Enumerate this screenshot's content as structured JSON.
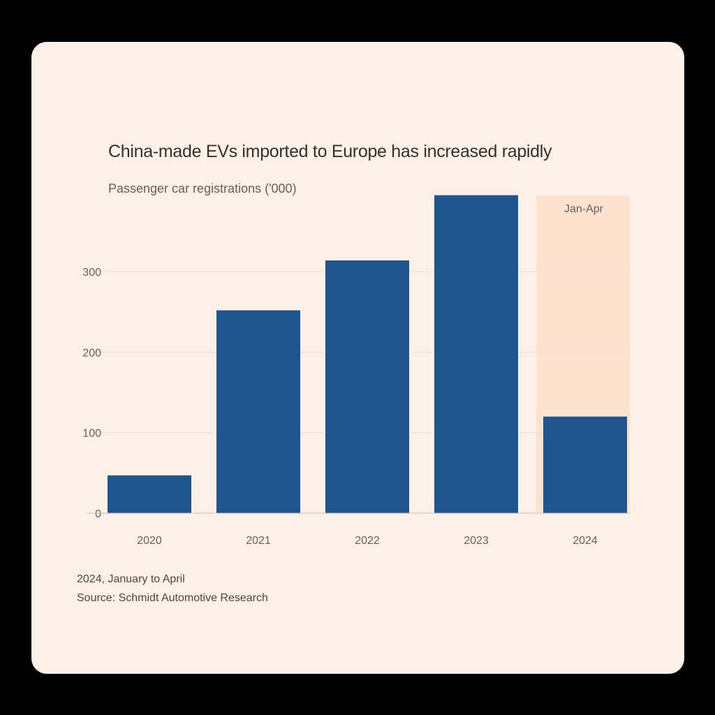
{
  "chart_data": {
    "type": "bar",
    "title": "China-made EVs imported to Europe has increased rapidly",
    "subtitle": "Passenger car registrations ('000)",
    "categories": [
      "2020",
      "2021",
      "2022",
      "2023",
      "2024"
    ],
    "values": [
      47,
      252,
      314,
      395,
      120
    ],
    "ylim": [
      0,
      400
    ],
    "yticks": [
      0,
      100,
      200,
      300
    ],
    "ytick_labels": [
      "0",
      "100",
      "200",
      "300"
    ],
    "grid": true,
    "highlight": {
      "category": "2024",
      "label": "Jan-Apr",
      "color": "#fde2d0"
    },
    "bar_color": "#1f558e",
    "background": "#fdf0e6",
    "notes": [
      "2024, January to April",
      "Source: Schmidt Automotive Research"
    ]
  }
}
